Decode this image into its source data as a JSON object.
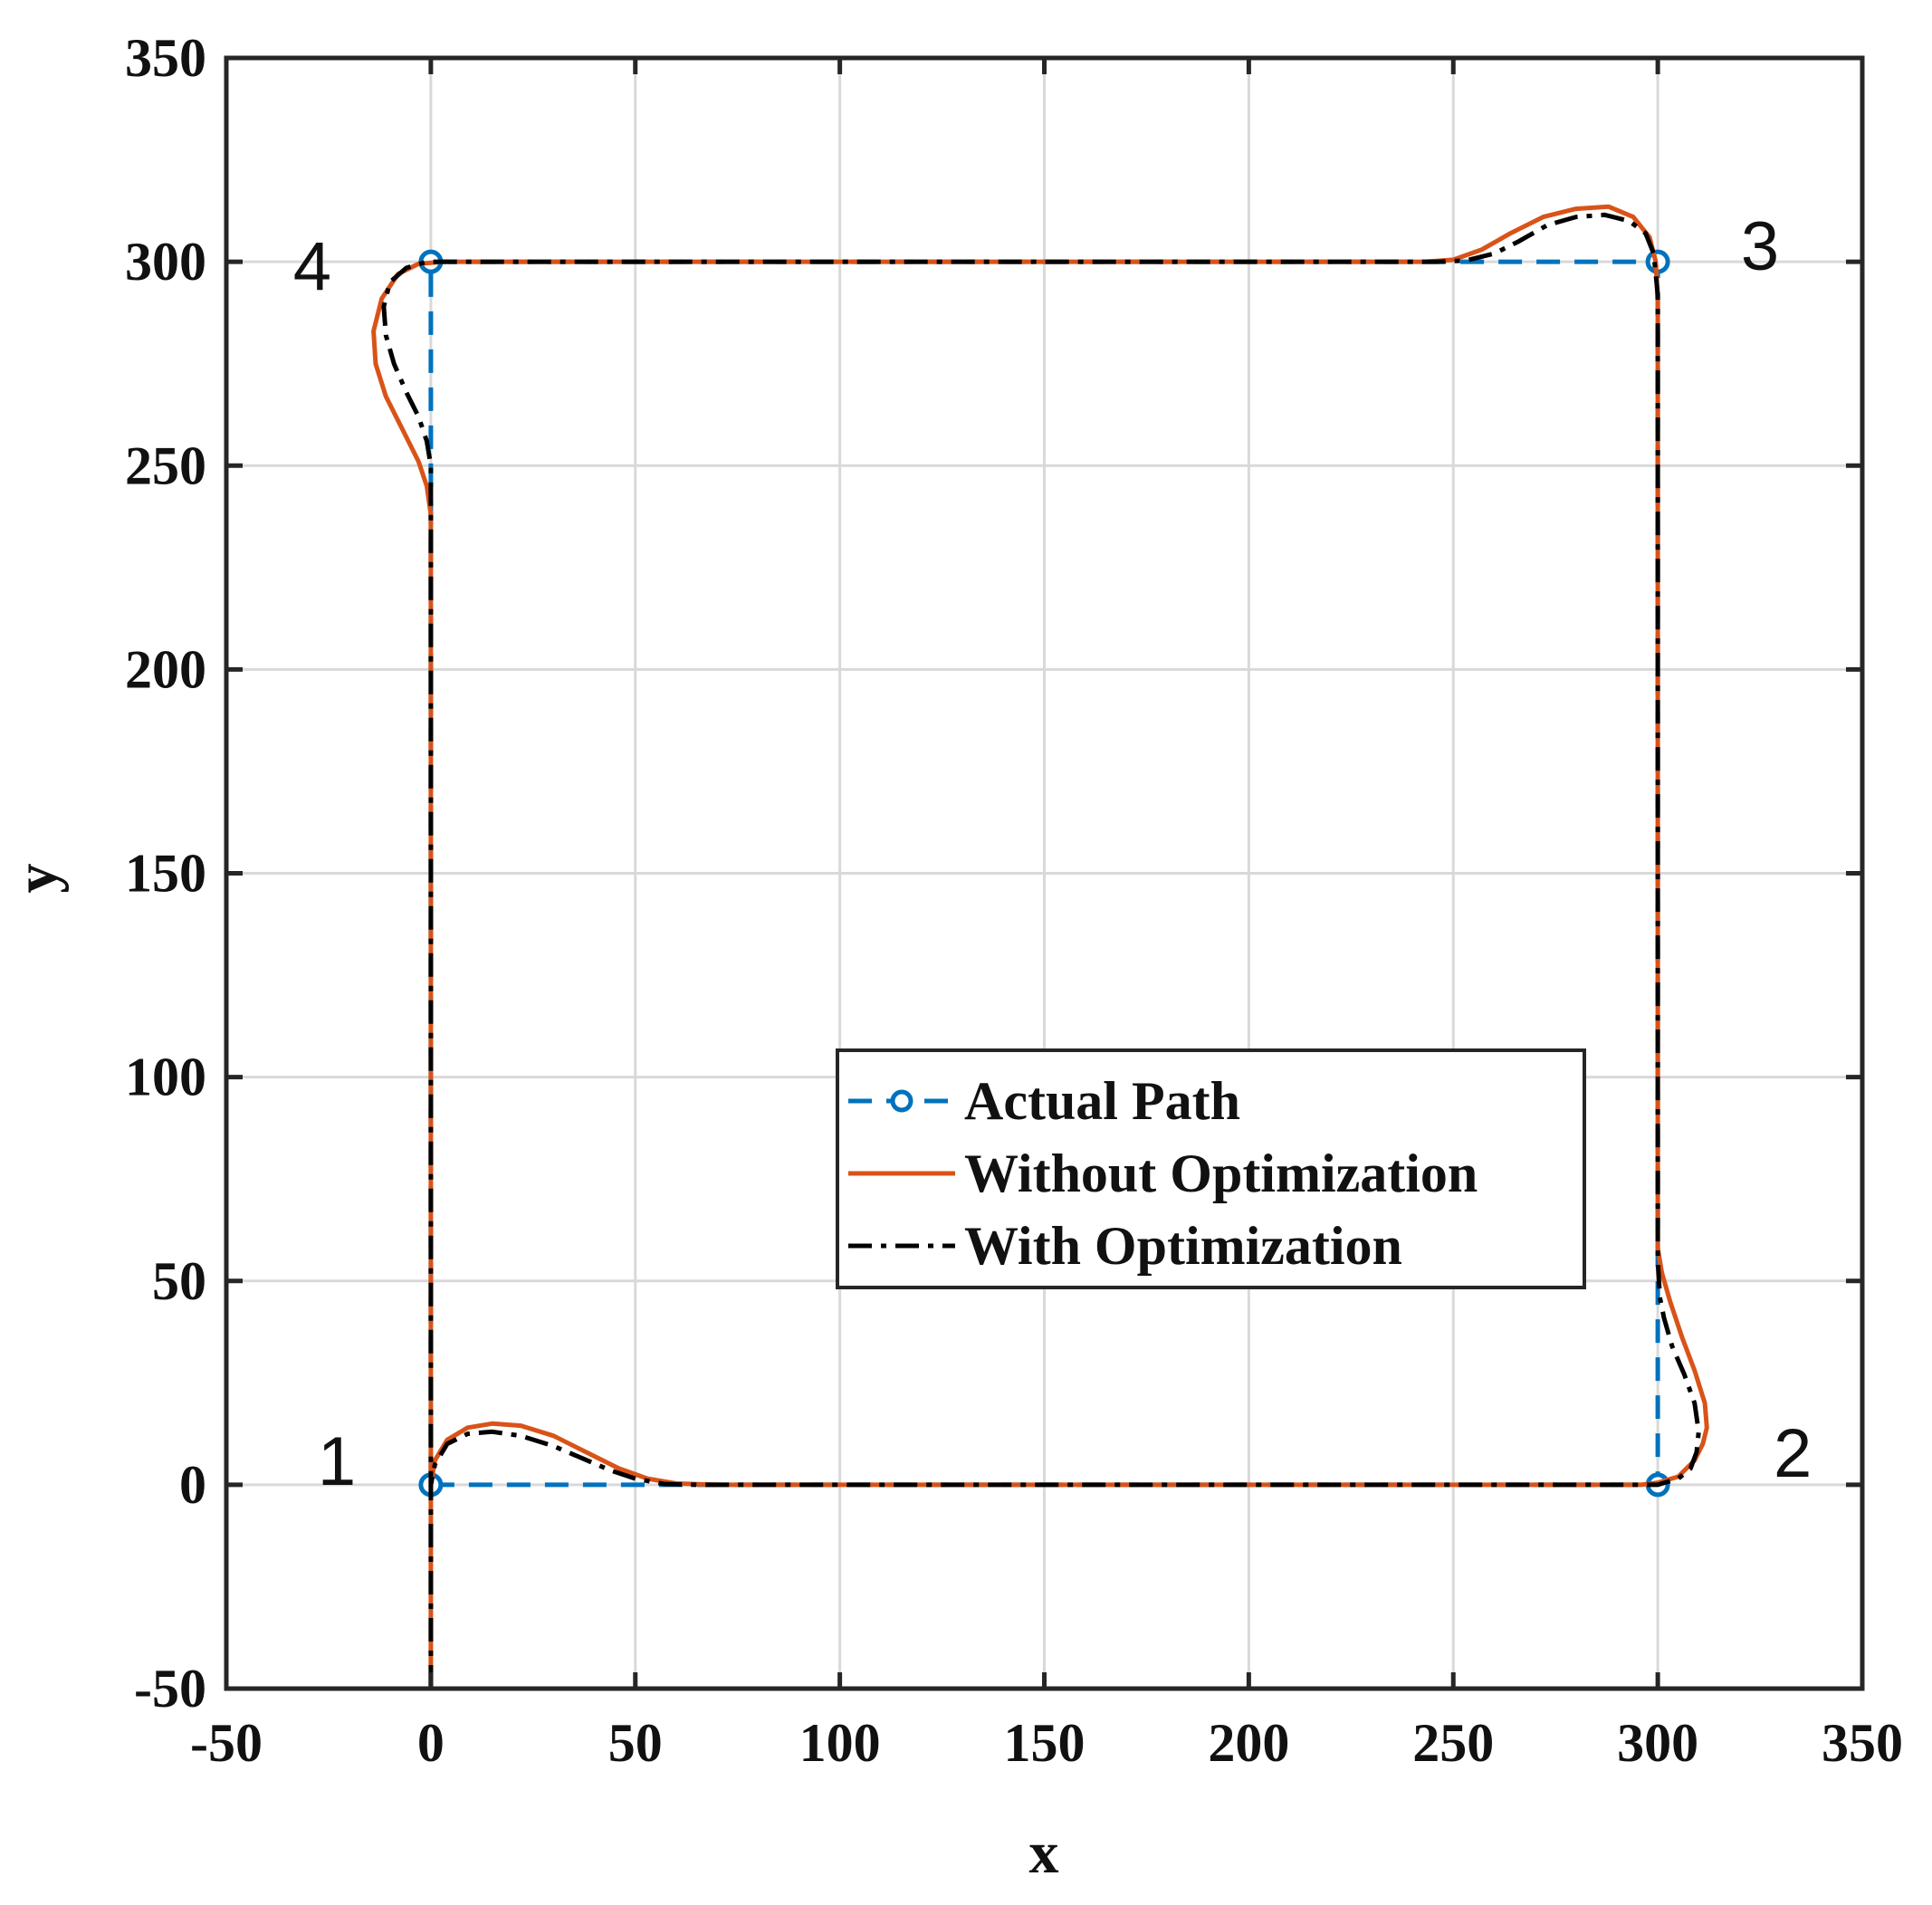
{
  "chart_data": {
    "type": "line",
    "title": "",
    "xlabel": "x",
    "ylabel": "y",
    "xlim": [
      -50,
      350
    ],
    "ylim": [
      -50,
      350
    ],
    "xticks": [
      -50,
      0,
      50,
      100,
      150,
      200,
      250,
      300,
      350
    ],
    "yticks": [
      -50,
      0,
      50,
      100,
      150,
      200,
      250,
      300,
      350
    ],
    "xtick_labels": [
      "-50",
      "0",
      "50",
      "100",
      "150",
      "200",
      "250",
      "300",
      "350"
    ],
    "ytick_labels": [
      "-50",
      "0",
      "50",
      "100",
      "150",
      "200",
      "250",
      "300",
      "350"
    ],
    "grid": true,
    "legend_position": "center-right",
    "series": [
      {
        "name": "Actual Path",
        "color": "#0072BD",
        "style": "dashed-with-circle-markers",
        "points": [
          [
            0,
            0
          ],
          [
            300,
            0
          ],
          [
            300,
            300
          ],
          [
            0,
            300
          ],
          [
            0,
            0
          ]
        ]
      },
      {
        "name": "Without Optimization",
        "color": "#D95319",
        "style": "solid",
        "points": [
          [
            0,
            -50
          ],
          [
            0,
            0
          ],
          [
            1,
            6
          ],
          [
            4,
            11
          ],
          [
            9,
            14
          ],
          [
            15,
            15
          ],
          [
            22,
            14.5
          ],
          [
            30,
            12
          ],
          [
            38,
            8
          ],
          [
            46,
            4
          ],
          [
            53,
            1.5
          ],
          [
            60,
            0.3
          ],
          [
            70,
            0
          ],
          [
            290,
            0
          ],
          [
            296,
            0
          ],
          [
            300,
            0.5
          ],
          [
            305,
            2
          ],
          [
            309,
            6
          ],
          [
            311,
            10
          ],
          [
            312,
            14
          ],
          [
            311.5,
            20
          ],
          [
            309,
            28
          ],
          [
            306,
            36
          ],
          [
            303,
            45
          ],
          [
            301,
            52
          ],
          [
            300,
            58
          ],
          [
            300,
            70
          ],
          [
            300,
            290
          ],
          [
            299.5,
            300
          ],
          [
            298,
            306
          ],
          [
            294,
            311
          ],
          [
            288,
            313.5
          ],
          [
            280,
            313
          ],
          [
            272,
            311
          ],
          [
            264,
            307
          ],
          [
            257,
            303
          ],
          [
            250,
            300.5
          ],
          [
            243,
            300
          ],
          [
            10,
            300
          ],
          [
            3,
            300
          ],
          [
            -3,
            299.5
          ],
          [
            -8,
            297
          ],
          [
            -12,
            291
          ],
          [
            -14,
            283
          ],
          [
            -13.5,
            275
          ],
          [
            -11,
            267
          ],
          [
            -7,
            259
          ],
          [
            -3,
            251
          ],
          [
            -1,
            245
          ],
          [
            0,
            238
          ],
          [
            0,
            225
          ],
          [
            0,
            0
          ]
        ]
      },
      {
        "name": "With Optimization",
        "color": "#000000",
        "style": "dash-dot",
        "points": [
          [
            0,
            -50
          ],
          [
            0,
            0
          ],
          [
            1,
            5
          ],
          [
            4,
            10
          ],
          [
            9,
            12.5
          ],
          [
            15,
            13
          ],
          [
            22,
            12
          ],
          [
            30,
            9.5
          ],
          [
            37,
            6.5
          ],
          [
            44,
            3.5
          ],
          [
            50,
            1.5
          ],
          [
            57,
            0.2
          ],
          [
            65,
            0
          ],
          [
            294,
            0
          ],
          [
            300,
            0
          ],
          [
            305,
            1.5
          ],
          [
            308,
            4
          ],
          [
            309.5,
            8
          ],
          [
            310,
            13
          ],
          [
            309,
            20
          ],
          [
            306.5,
            27
          ],
          [
            303.5,
            34
          ],
          [
            301.5,
            41
          ],
          [
            300.5,
            46
          ],
          [
            300,
            55
          ],
          [
            300,
            292
          ],
          [
            299,
            302
          ],
          [
            297,
            307
          ],
          [
            293,
            310
          ],
          [
            287,
            311.5
          ],
          [
            280,
            311
          ],
          [
            273,
            309
          ],
          [
            266,
            305
          ],
          [
            260,
            302
          ],
          [
            253,
            300.3
          ],
          [
            246,
            300
          ],
          [
            5,
            300
          ],
          [
            -1,
            300
          ],
          [
            -6,
            298.5
          ],
          [
            -10,
            295
          ],
          [
            -11.5,
            289
          ],
          [
            -11,
            282
          ],
          [
            -9,
            275
          ],
          [
            -6,
            268
          ],
          [
            -3,
            262
          ],
          [
            -1,
            256
          ],
          [
            0,
            250
          ],
          [
            0,
            240
          ],
          [
            0,
            0
          ]
        ]
      }
    ],
    "annotations": [
      {
        "text": "1",
        "at": [
          -23,
          6
        ]
      },
      {
        "text": "2",
        "at": [
          333,
          8
        ]
      },
      {
        "text": "3",
        "at": [
          325,
          304
        ]
      },
      {
        "text": "4",
        "at": [
          -29,
          299
        ]
      }
    ]
  },
  "legend": {
    "items": [
      {
        "label": "Actual Path",
        "color": "#0072BD"
      },
      {
        "label": "Without Optimization",
        "color": "#D95319"
      },
      {
        "label": "With Optimization",
        "color": "#000000"
      }
    ]
  }
}
